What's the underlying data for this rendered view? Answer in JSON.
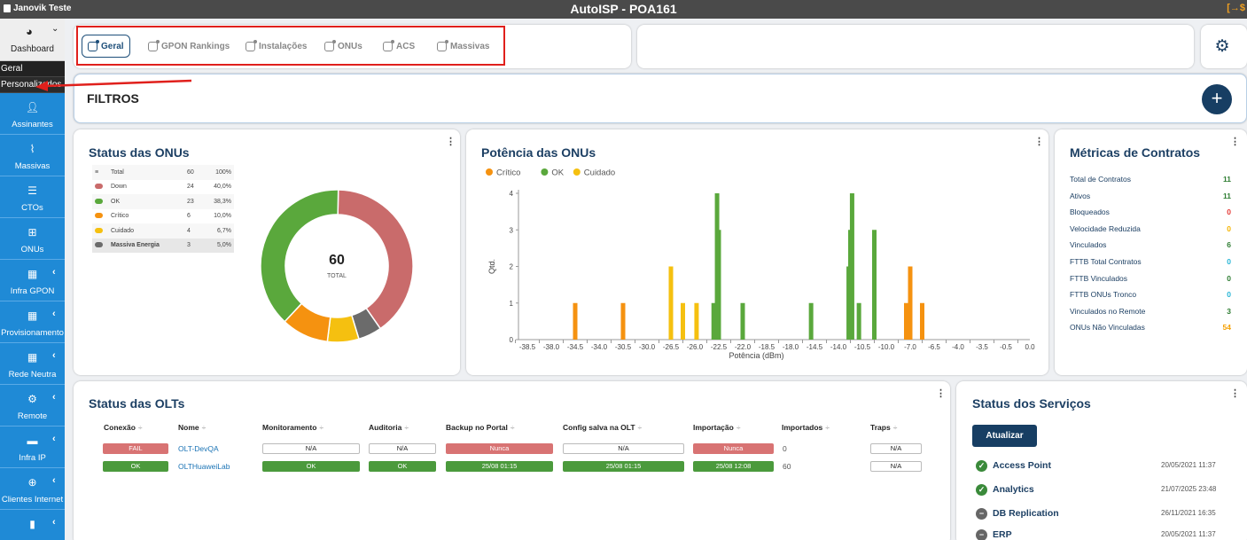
{
  "topbar": {
    "user": "Janovik Teste",
    "title": "AutoISP - POA161",
    "logout": "[→$"
  },
  "sidebar": {
    "dashboard": "Dashboard",
    "submenu": [
      "Geral",
      "Personalizados"
    ],
    "items": [
      {
        "label": "Assinantes",
        "icon": "user-icon"
      },
      {
        "label": "Massivas",
        "icon": "wifi-off-icon"
      },
      {
        "label": "CTOs",
        "icon": "database-icon"
      },
      {
        "label": "ONUs",
        "icon": "sitemap-icon"
      },
      {
        "label": "Infra GPON",
        "icon": "building-icon"
      },
      {
        "label": "Provisionamento",
        "icon": "building-icon"
      },
      {
        "label": "Rede Neutra",
        "icon": "building-icon"
      },
      {
        "label": "Remote",
        "icon": "remote-icon"
      },
      {
        "label": "Infra IP",
        "icon": "server-icon"
      },
      {
        "label": "Clientes Internet",
        "icon": "globe-icon"
      },
      {
        "label": "",
        "icon": "file-icon"
      }
    ]
  },
  "tabs": [
    {
      "label": "Geral"
    },
    {
      "label": "GPON Rankings"
    },
    {
      "label": "Instalações"
    },
    {
      "label": "ONUs"
    },
    {
      "label": "ACS"
    },
    {
      "label": "Massivas"
    }
  ],
  "filtros": {
    "title": "FILTROS"
  },
  "status_onus": {
    "title": "Status das ONUs",
    "legend": [
      {
        "name": "Total",
        "count": "60",
        "pct": "100%",
        "color": ""
      },
      {
        "name": "Down",
        "count": "24",
        "pct": "40,0%",
        "color": "#c96b6b"
      },
      {
        "name": "OK",
        "count": "23",
        "pct": "38,3%",
        "color": "#5aa83c"
      },
      {
        "name": "Crítico",
        "count": "6",
        "pct": "10,0%",
        "color": "#f59210"
      },
      {
        "name": "Cuidado",
        "count": "4",
        "pct": "6,7%",
        "color": "#f5c010"
      },
      {
        "name": "Massiva Energia",
        "count": "3",
        "pct": "5,0%",
        "color": "#6b6b6b"
      }
    ],
    "center_value": "60",
    "center_label": "TOTAL"
  },
  "potencia": {
    "title": "Potência das ONUs"
  },
  "chart_data": {
    "type": "bar",
    "xlabel": "Potência (dBm)",
    "ylabel": "Qtd.",
    "ylim": [
      0,
      4
    ],
    "x_ticks": [
      "-38.5",
      "-38.0",
      "-34.5",
      "-34.0",
      "-30.5",
      "-30.0",
      "-26.5",
      "-26.0",
      "-22.5",
      "-22.0",
      "-18.5",
      "-18.0",
      "-14.5",
      "-14.0",
      "-10.5",
      "-10.0",
      "-7.0",
      "-6.5",
      "-4.0",
      "-3.5",
      "-0.5",
      "0.0"
    ],
    "y_ticks": [
      "0",
      "1",
      "2",
      "3",
      "4"
    ],
    "legend": [
      "Crítico",
      "OK",
      "Cuidado"
    ],
    "colors": {
      "Crítico": "#f59210",
      "OK": "#5aa83c",
      "Cuidado": "#f5c010"
    },
    "bars": [
      {
        "x": -34.5,
        "series": "Crítico",
        "value": 1
      },
      {
        "x": -30.5,
        "series": "Crítico",
        "value": 1
      },
      {
        "x": -26.5,
        "series": "Cuidado",
        "value": 2
      },
      {
        "x": -26.25,
        "series": "Cuidado",
        "value": 1
      },
      {
        "x": -25.75,
        "series": "Cuidado",
        "value": 1
      },
      {
        "x": -23.25,
        "series": "OK",
        "value": 1
      },
      {
        "x": -22.75,
        "series": "OK",
        "value": 4
      },
      {
        "x": -22.5,
        "series": "OK",
        "value": 3
      },
      {
        "x": -22.0,
        "series": "OK",
        "value": 1
      },
      {
        "x": -15.0,
        "series": "OK",
        "value": 1
      },
      {
        "x": -12.5,
        "series": "OK",
        "value": 2
      },
      {
        "x": -12.25,
        "series": "OK",
        "value": 3
      },
      {
        "x": -12.0,
        "series": "OK",
        "value": 4
      },
      {
        "x": -11.0,
        "series": "OK",
        "value": 1
      },
      {
        "x": -10.25,
        "series": "OK",
        "value": 3
      },
      {
        "x": -7.5,
        "series": "Crítico",
        "value": 1
      },
      {
        "x": -7.0,
        "series": "Crítico",
        "value": 2
      },
      {
        "x": -6.75,
        "series": "Crítico",
        "value": 1
      }
    ]
  },
  "metricas": {
    "title": "Métricas de Contratos",
    "items": [
      {
        "label": "Total de Contratos",
        "value": "11",
        "color": "#2e7d32"
      },
      {
        "label": "Ativos",
        "value": "11",
        "color": "#2e7d32"
      },
      {
        "label": "Bloqueados",
        "value": "0",
        "color": "#e53935"
      },
      {
        "label": "Velocidade Reduzida",
        "value": "0",
        "color": "#f5b400"
      },
      {
        "label": "Vinculados",
        "value": "6",
        "color": "#2e7d32"
      },
      {
        "label": "FTTB Total Contratos",
        "value": "0",
        "color": "#29b6d6"
      },
      {
        "label": "FTTB Vinculados",
        "value": "0",
        "color": "#2e7d32"
      },
      {
        "label": "FTTB ONUs Tronco",
        "value": "0",
        "color": "#29b6d6"
      },
      {
        "label": "Vinculados no Remote",
        "value": "3",
        "color": "#2e7d32"
      },
      {
        "label": "ONUs Não Vinculadas",
        "value": "54",
        "color": "#f5a000"
      }
    ]
  },
  "olts": {
    "title": "Status das OLTs",
    "columns": [
      "Conexão",
      "Nome",
      "Monitoramento",
      "Auditoria",
      "Backup no Portal",
      "Config salva na OLT",
      "Importação",
      "Importados",
      "Traps"
    ],
    "rows": [
      {
        "conexao": "FAIL",
        "nome": "OLT-DevQA",
        "monitoramento": "N/A",
        "auditoria": "N/A",
        "backup": "Nunca",
        "config": "N/A",
        "importacao": "Nunca",
        "importados": "0",
        "traps": "N/A"
      },
      {
        "conexao": "OK",
        "nome": "OLTHuaweiLab",
        "monitoramento": "OK",
        "auditoria": "OK",
        "backup": "25/08 01:15",
        "config": "25/08 01:15",
        "importacao": "25/08 12:08",
        "importados": "60",
        "traps": "N/A"
      }
    ]
  },
  "servicos": {
    "title": "Status dos Serviços",
    "button": "Atualizar",
    "items": [
      {
        "name": "Access Point",
        "date": "20/05/2021 11:37",
        "status": "ok"
      },
      {
        "name": "Analytics",
        "date": "21/07/2025 23:48",
        "status": "ok"
      },
      {
        "name": "DB Replication",
        "date": "26/11/2021 16:35",
        "status": "off"
      },
      {
        "name": "ERP",
        "date": "20/05/2021 11:37",
        "status": "off"
      }
    ]
  }
}
